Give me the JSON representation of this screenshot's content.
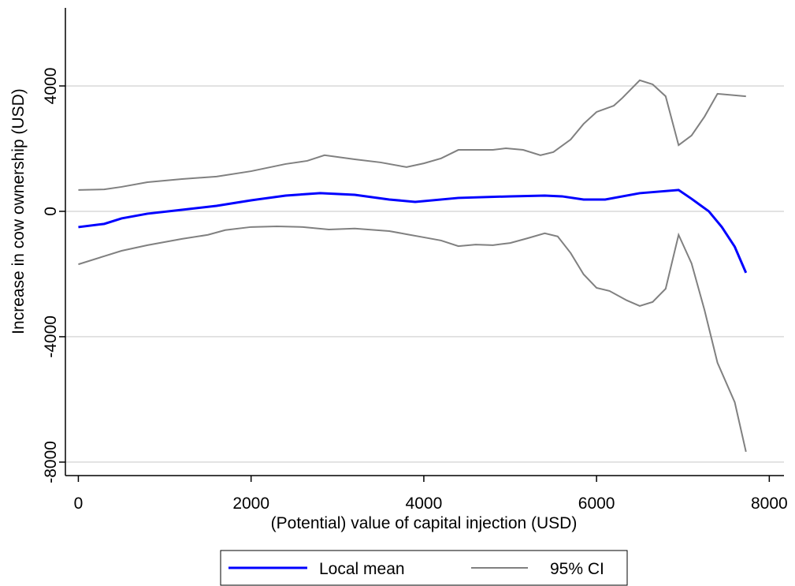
{
  "chart_data": {
    "type": "line",
    "x_label": "(Potential) value of capital injection (USD)",
    "y_label": "Increase in cow ownership (USD)",
    "xlim": [
      -150,
      8170
    ],
    "xticks": [
      0,
      2000,
      4000,
      6000,
      8000
    ],
    "ylim": [
      -8430,
      6490
    ],
    "yticks": [
      -8000,
      -4000,
      0,
      4000
    ],
    "grid": true,
    "legend": "bottom",
    "series": [
      {
        "name": "Local mean",
        "color": "#0000ff",
        "x": [
          0,
          300,
          500,
          800,
          1200,
          1600,
          2000,
          2400,
          2800,
          3200,
          3600,
          3900,
          4400,
          5000,
          5400,
          5600,
          5850,
          6100,
          6500,
          6950,
          7100,
          7300,
          7450,
          7600,
          7730
        ],
        "values": [
          -503,
          -400,
          -226,
          -75,
          50,
          176,
          352,
          503,
          579,
          528,
          377,
          302,
          428,
          478,
          503,
          478,
          377,
          377,
          579,
          680,
          400,
          0,
          -500,
          -1130,
          -1960
        ]
      },
      {
        "name": "95% CI",
        "color": "#808080",
        "x": [
          0,
          300,
          500,
          800,
          1200,
          1600,
          2000,
          2400,
          2650,
          2850,
          3200,
          3500,
          3800,
          4000,
          4200,
          4400,
          4800,
          4950,
          5150,
          5350,
          5500,
          5700,
          5850,
          6000,
          6200,
          6300,
          6500,
          6650,
          6800,
          6950,
          7100,
          7250,
          7400,
          7730
        ],
        "values": [
          680,
          700,
          780,
          930,
          1030,
          1110,
          1280,
          1510,
          1610,
          1790,
          1660,
          1560,
          1410,
          1530,
          1690,
          1960,
          1960,
          2010,
          1960,
          1790,
          1890,
          2290,
          2790,
          3170,
          3370,
          3620,
          4180,
          4050,
          3670,
          2110,
          2420,
          3020,
          3750,
          3670
        ]
      },
      {
        "color": "#808080",
        "x": [
          0,
          300,
          500,
          800,
          1200,
          1500,
          1700,
          2000,
          2300,
          2600,
          2900,
          3200,
          3600,
          3800,
          4000,
          4200,
          4400,
          4600,
          4800,
          5000,
          5200,
          5400,
          5550,
          5700,
          5850,
          6000,
          6150,
          6350,
          6500,
          6650,
          6800,
          6950,
          7100,
          7250,
          7400,
          7600,
          7730
        ],
        "values": [
          -1690,
          -1430,
          -1260,
          -1080,
          -880,
          -750,
          -600,
          -500,
          -480,
          -500,
          -580,
          -550,
          -630,
          -730,
          -830,
          -930,
          -1110,
          -1060,
          -1080,
          -1010,
          -860,
          -700,
          -800,
          -1330,
          -2010,
          -2440,
          -2540,
          -2840,
          -3020,
          -2890,
          -2470,
          -750,
          -1660,
          -3150,
          -4830,
          -6090,
          -7670
        ]
      }
    ]
  }
}
